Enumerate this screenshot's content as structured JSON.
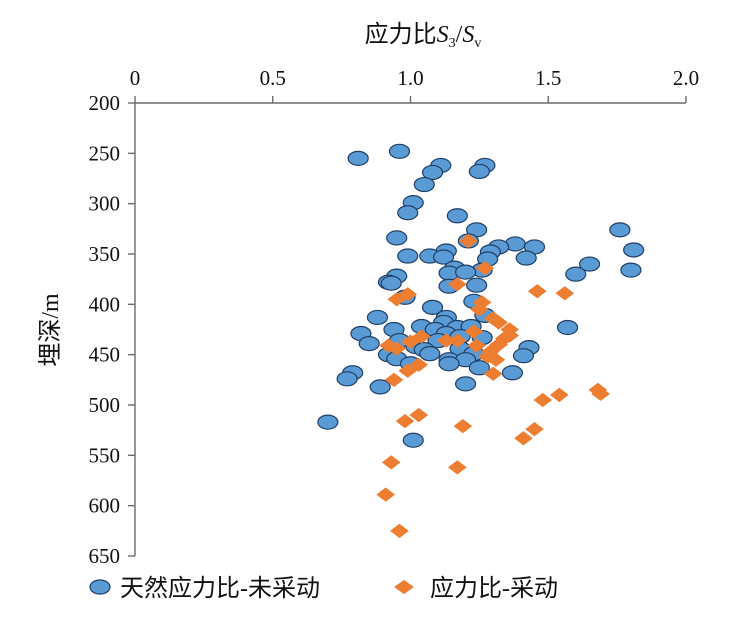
{
  "chart_data": {
    "type": "scatter",
    "title": "",
    "xlabel": {
      "prefix": "应力比",
      "var1": "S",
      "sub1": "3",
      "slash": "/",
      "var2": "S",
      "sub2": "v"
    },
    "ylabel": "埋深/m",
    "xlim": [
      0,
      2.0
    ],
    "ylim": [
      200,
      650
    ],
    "y_inverted": true,
    "x_axis_position": "top",
    "x_ticks": [
      "0",
      "0.5",
      "1.0",
      "1.5",
      "2.0"
    ],
    "x_tick_values": [
      0,
      0.5,
      1.0,
      1.5,
      2.0
    ],
    "y_ticks": [
      "200",
      "250",
      "300",
      "350",
      "400",
      "450",
      "500",
      "550",
      "600",
      "650"
    ],
    "y_tick_values": [
      200,
      250,
      300,
      350,
      400,
      450,
      500,
      550,
      600,
      650
    ],
    "grid": false,
    "legend_position": "bottom",
    "series": [
      {
        "name": "天然应力比-未采动",
        "marker": "circle",
        "color": "#5b9bd5",
        "stroke": "#1f3f66",
        "points": [
          [
            0.96,
            248
          ],
          [
            0.81,
            255
          ],
          [
            1.11,
            262
          ],
          [
            1.27,
            262
          ],
          [
            1.25,
            268
          ],
          [
            1.08,
            269
          ],
          [
            1.05,
            281
          ],
          [
            1.01,
            299
          ],
          [
            0.99,
            309
          ],
          [
            1.17,
            312
          ],
          [
            1.76,
            326
          ],
          [
            1.24,
            326
          ],
          [
            0.95,
            334
          ],
          [
            1.21,
            337
          ],
          [
            1.38,
            340
          ],
          [
            1.32,
            343
          ],
          [
            1.45,
            343
          ],
          [
            1.81,
            346
          ],
          [
            1.13,
            347
          ],
          [
            1.29,
            348
          ],
          [
            0.99,
            352
          ],
          [
            1.07,
            352
          ],
          [
            1.12,
            353
          ],
          [
            1.28,
            355
          ],
          [
            1.42,
            354
          ],
          [
            1.65,
            360
          ],
          [
            1.16,
            364
          ],
          [
            1.26,
            366
          ],
          [
            1.14,
            369
          ],
          [
            1.2,
            368
          ],
          [
            1.6,
            370
          ],
          [
            1.8,
            366
          ],
          [
            0.95,
            372
          ],
          [
            0.92,
            378
          ],
          [
            0.93,
            379
          ],
          [
            1.24,
            381
          ],
          [
            1.14,
            382
          ],
          [
            0.98,
            393
          ],
          [
            1.23,
            397
          ],
          [
            1.08,
            403
          ],
          [
            1.13,
            413
          ],
          [
            1.27,
            411
          ],
          [
            0.88,
            413
          ],
          [
            1.12,
            418
          ],
          [
            1.04,
            422
          ],
          [
            1.17,
            423
          ],
          [
            1.22,
            422
          ],
          [
            1.57,
            423
          ],
          [
            0.94,
            425
          ],
          [
            1.09,
            425
          ],
          [
            0.82,
            429
          ],
          [
            1.13,
            429
          ],
          [
            1.18,
            432
          ],
          [
            1.26,
            433
          ],
          [
            0.96,
            436
          ],
          [
            1.1,
            436
          ],
          [
            0.85,
            439
          ],
          [
            1.02,
            442
          ],
          [
            1.43,
            443
          ],
          [
            1.05,
            445
          ],
          [
            1.18,
            444
          ],
          [
            0.92,
            450
          ],
          [
            1.07,
            449
          ],
          [
            1.23,
            449
          ],
          [
            1.41,
            451
          ],
          [
            0.95,
            454
          ],
          [
            1.14,
            455
          ],
          [
            1.2,
            455
          ],
          [
            1.0,
            459
          ],
          [
            1.14,
            459
          ],
          [
            1.25,
            463
          ],
          [
            0.79,
            468
          ],
          [
            1.37,
            468
          ],
          [
            0.77,
            474
          ],
          [
            1.2,
            479
          ],
          [
            0.89,
            482
          ],
          [
            0.7,
            517
          ],
          [
            1.01,
            535
          ]
        ]
      },
      {
        "name": "应力比-采动",
        "marker": "diamond",
        "color": "#ed7d31",
        "stroke": "#ed7d31",
        "points": [
          [
            1.21,
            337
          ],
          [
            1.27,
            364
          ],
          [
            1.17,
            380
          ],
          [
            1.46,
            387
          ],
          [
            1.56,
            389
          ],
          [
            0.99,
            390
          ],
          [
            0.95,
            395
          ],
          [
            1.26,
            398
          ],
          [
            1.25,
            405
          ],
          [
            1.3,
            414
          ],
          [
            1.32,
            418
          ],
          [
            1.36,
            425
          ],
          [
            1.23,
            427
          ],
          [
            1.36,
            431
          ],
          [
            1.04,
            432
          ],
          [
            1.34,
            434
          ],
          [
            1.0,
            437
          ],
          [
            1.13,
            436
          ],
          [
            1.17,
            436
          ],
          [
            1.32,
            440
          ],
          [
            0.92,
            441
          ],
          [
            1.24,
            441
          ],
          [
            0.95,
            444
          ],
          [
            1.29,
            447
          ],
          [
            1.28,
            452
          ],
          [
            1.31,
            455
          ],
          [
            1.03,
            460
          ],
          [
            0.99,
            466
          ],
          [
            1.3,
            469
          ],
          [
            0.94,
            475
          ],
          [
            1.68,
            485
          ],
          [
            1.69,
            489
          ],
          [
            1.54,
            490
          ],
          [
            1.48,
            495
          ],
          [
            1.03,
            510
          ],
          [
            0.98,
            516
          ],
          [
            1.19,
            521
          ],
          [
            1.45,
            524
          ],
          [
            1.41,
            533
          ],
          [
            0.93,
            557
          ],
          [
            1.17,
            562
          ],
          [
            0.91,
            589
          ],
          [
            0.96,
            625
          ]
        ]
      }
    ]
  }
}
